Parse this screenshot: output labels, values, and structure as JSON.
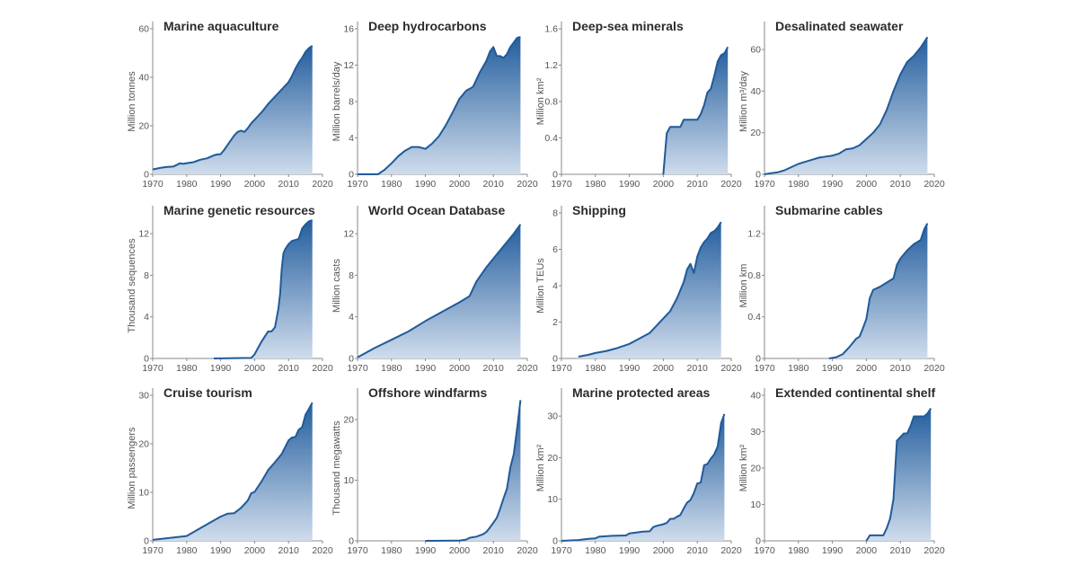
{
  "chart_data": [
    {
      "type": "area",
      "title": "Marine aquaculture",
      "xlabel": "",
      "ylabel": "Million tonnes",
      "xlim": [
        1970,
        2020
      ],
      "ylim": [
        0,
        60
      ],
      "xticks": [
        1970,
        1980,
        1990,
        2000,
        2010,
        2020
      ],
      "yticks": [
        0,
        20,
        40,
        60
      ],
      "x": [
        1970,
        1972,
        1974,
        1976,
        1977,
        1978,
        1979,
        1980,
        1982,
        1984,
        1986,
        1988,
        1989,
        1990,
        1991,
        1992,
        1993,
        1994,
        1995,
        1996,
        1997,
        1998,
        1999,
        2000,
        2002,
        2004,
        2006,
        2008,
        2010,
        2011,
        2012,
        2013,
        2014,
        2015,
        2016,
        2017
      ],
      "values": [
        2,
        2.6,
        3,
        3.2,
        3.8,
        4.5,
        4.3,
        4.6,
        5,
        6,
        6.6,
        7.8,
        8.2,
        8.3,
        10,
        12,
        14,
        16,
        17.5,
        18,
        17.5,
        19,
        21,
        22.5,
        25.5,
        29,
        32,
        35,
        38,
        40.5,
        43.5,
        46,
        48,
        50.5,
        52,
        53
      ]
    },
    {
      "type": "area",
      "title": "Deep hydrocarbons",
      "xlabel": "",
      "ylabel": "Million barrels/day",
      "xlim": [
        1970,
        2020
      ],
      "ylim": [
        0,
        16
      ],
      "xticks": [
        1970,
        1980,
        1990,
        2000,
        2010,
        2020
      ],
      "yticks": [
        0,
        4,
        8,
        12,
        16
      ],
      "x": [
        1970,
        1976,
        1978,
        1980,
        1982,
        1984,
        1986,
        1988,
        1990,
        1992,
        1994,
        1996,
        1998,
        2000,
        2002,
        2004,
        2006,
        2008,
        2009,
        2010,
        2011,
        2012,
        2013,
        2014,
        2015,
        2016,
        2017,
        2018
      ],
      "values": [
        0,
        0,
        0.5,
        1.2,
        2,
        2.6,
        3,
        3,
        2.8,
        3.4,
        4.2,
        5.4,
        6.8,
        8.3,
        9.2,
        9.6,
        11.2,
        12.5,
        13.5,
        14,
        13,
        13,
        12.8,
        13.2,
        14,
        14.5,
        15,
        15.1
      ]
    },
    {
      "type": "area",
      "title": "Deep-sea minerals",
      "xlabel": "",
      "ylabel": "Million km²",
      "xlim": [
        1970,
        2020
      ],
      "ylim": [
        0,
        1.6
      ],
      "xticks": [
        1970,
        1980,
        1990,
        2000,
        2010,
        2020
      ],
      "yticks": [
        0,
        0.4,
        0.8,
        1.2,
        1.6
      ],
      "x": [
        2000,
        2001,
        2002,
        2005,
        2006,
        2010,
        2011,
        2012,
        2013,
        2014,
        2015,
        2016,
        2017,
        2018,
        2019
      ],
      "values": [
        0,
        0.45,
        0.52,
        0.52,
        0.6,
        0.6,
        0.66,
        0.76,
        0.9,
        0.94,
        1.08,
        1.24,
        1.31,
        1.33,
        1.4
      ]
    },
    {
      "type": "area",
      "title": "Desalinated seawater",
      "xlabel": "",
      "ylabel": "Million m³/day",
      "xlim": [
        1970,
        2020
      ],
      "ylim": [
        0,
        70
      ],
      "xticks": [
        1970,
        1980,
        1990,
        2000,
        2010,
        2020
      ],
      "yticks": [
        0,
        20,
        40,
        60
      ],
      "x": [
        1970,
        1972,
        1974,
        1976,
        1978,
        1980,
        1982,
        1984,
        1986,
        1988,
        1990,
        1992,
        1994,
        1996,
        1998,
        2000,
        2002,
        2004,
        2006,
        2008,
        2010,
        2012,
        2014,
        2016,
        2018
      ],
      "values": [
        0,
        0.5,
        1,
        2,
        3.5,
        5,
        6,
        7,
        8,
        8.5,
        9,
        10,
        12,
        12.5,
        14,
        17,
        20,
        24,
        31,
        40,
        48,
        54,
        57,
        61,
        66
      ]
    },
    {
      "type": "area",
      "title": "Marine genetic resources",
      "xlabel": "",
      "ylabel": "Thousand sequences",
      "xlim": [
        1970,
        2020
      ],
      "ylim": [
        0,
        14
      ],
      "xticks": [
        1970,
        1980,
        1990,
        2000,
        2010,
        2020
      ],
      "yticks": [
        0,
        4,
        8,
        12
      ],
      "x": [
        1988,
        1999,
        2000,
        2001,
        2002,
        2003,
        2004,
        2005,
        2006,
        2007,
        2007.5,
        2008,
        2008.5,
        2009,
        2010,
        2011,
        2012,
        2013,
        2014,
        2015,
        2016,
        2017
      ],
      "values": [
        0,
        0.05,
        0.4,
        1,
        1.6,
        2.1,
        2.6,
        2.6,
        3,
        4.8,
        6.2,
        8.6,
        10.1,
        10.5,
        11,
        11.3,
        11.4,
        11.5,
        12.5,
        12.9,
        13.2,
        13.3
      ]
    },
    {
      "type": "area",
      "title": "World Ocean Database",
      "xlabel": "",
      "ylabel": "Million casts",
      "xlim": [
        1970,
        2020
      ],
      "ylim": [
        0,
        14
      ],
      "xticks": [
        1970,
        1980,
        1990,
        2000,
        2010,
        2020
      ],
      "yticks": [
        0,
        4,
        8,
        12
      ],
      "x": [
        1970,
        1975,
        1980,
        1985,
        1990,
        1995,
        2000,
        2003,
        2005,
        2008,
        2010,
        2013,
        2016,
        2018
      ],
      "values": [
        0.1,
        1,
        1.8,
        2.6,
        3.6,
        4.5,
        5.4,
        6,
        7.4,
        8.8,
        9.6,
        10.8,
        12,
        12.9
      ]
    },
    {
      "type": "area",
      "title": "Shipping",
      "xlabel": "",
      "ylabel": "Million TEUs",
      "xlim": [
        1970,
        2020
      ],
      "ylim": [
        0,
        8
      ],
      "xticks": [
        1970,
        1980,
        1990,
        2000,
        2010,
        2020
      ],
      "yticks": [
        0,
        2,
        4,
        6,
        8
      ],
      "x": [
        1975,
        1978,
        1980,
        1983,
        1986,
        1990,
        1993,
        1996,
        1998,
        2000,
        2002,
        2004,
        2006,
        2007,
        2008,
        2009,
        2010,
        2011,
        2012,
        2013,
        2014,
        2015,
        2016,
        2017
      ],
      "values": [
        0.1,
        0.2,
        0.3,
        0.4,
        0.55,
        0.8,
        1.1,
        1.4,
        1.8,
        2.2,
        2.6,
        3.3,
        4.2,
        4.9,
        5.2,
        4.7,
        5.6,
        6.1,
        6.4,
        6.6,
        6.9,
        7,
        7.2,
        7.5
      ]
    },
    {
      "type": "area",
      "title": "Submarine cables",
      "xlabel": "",
      "ylabel": "Million km",
      "xlim": [
        1970,
        2020
      ],
      "ylim": [
        0,
        1.4
      ],
      "xticks": [
        1970,
        1980,
        1990,
        2000,
        2010,
        2020
      ],
      "yticks": [
        0,
        0.4,
        0.8,
        1.2
      ],
      "x": [
        1989,
        1991,
        1993,
        1995,
        1997,
        1998,
        1999,
        2000,
        2001,
        2002,
        2004,
        2006,
        2008,
        2009,
        2010,
        2012,
        2014,
        2016,
        2017,
        2018
      ],
      "values": [
        0,
        0.01,
        0.04,
        0.11,
        0.19,
        0.21,
        0.29,
        0.38,
        0.58,
        0.66,
        0.69,
        0.73,
        0.77,
        0.9,
        0.96,
        1.04,
        1.1,
        1.14,
        1.24,
        1.3
      ]
    },
    {
      "type": "area",
      "title": "Cruise tourism",
      "xlabel": "",
      "ylabel": "Million passengers",
      "xlim": [
        1970,
        2020
      ],
      "ylim": [
        0,
        30
      ],
      "xticks": [
        1970,
        1980,
        1990,
        2000,
        2010,
        2020
      ],
      "yticks": [
        0,
        10,
        20,
        30
      ],
      "x": [
        1970,
        1980,
        1985,
        1990,
        1992,
        1994,
        1996,
        1998,
        1999,
        2000,
        2002,
        2004,
        2006,
        2008,
        2010,
        2011,
        2012,
        2013,
        2014,
        2015,
        2016,
        2017
      ],
      "values": [
        0.2,
        1,
        3,
        5,
        5.6,
        5.7,
        6.8,
        8.3,
        9.8,
        10.1,
        12.2,
        14.6,
        16.2,
        17.9,
        20.7,
        21.3,
        21.4,
        22.9,
        23.4,
        26,
        27.2,
        28.5
      ]
    },
    {
      "type": "area",
      "title": "Offshore windfarms",
      "xlabel": "",
      "ylabel": "Thousand megawatts",
      "xlim": [
        1970,
        2020
      ],
      "ylim": [
        0,
        24
      ],
      "xticks": [
        1970,
        1980,
        1990,
        2000,
        2010,
        2020
      ],
      "yticks": [
        0,
        10,
        20
      ],
      "x": [
        1990,
        2000,
        2002,
        2003,
        2005,
        2007,
        2008,
        2009,
        2010,
        2011,
        2012,
        2013,
        2014,
        2015,
        2016,
        2017,
        2018
      ],
      "values": [
        0,
        0.05,
        0.2,
        0.5,
        0.7,
        1.1,
        1.5,
        2.2,
        3,
        3.8,
        5.3,
        7,
        8.6,
        12.1,
        14.3,
        18.6,
        23.2
      ]
    },
    {
      "type": "area",
      "title": "Marine protected areas",
      "xlabel": "",
      "ylabel": "Million km²",
      "xlim": [
        1970,
        2020
      ],
      "ylim": [
        0,
        35
      ],
      "xticks": [
        1970,
        1980,
        1990,
        2000,
        2010,
        2020
      ],
      "yticks": [
        0,
        10,
        20,
        30
      ],
      "x": [
        1970,
        1975,
        1978,
        1980,
        1981,
        1985,
        1989,
        1990,
        1992,
        1994,
        1996,
        1997,
        1998,
        2000,
        2001,
        2002,
        2003,
        2004,
        2005,
        2006,
        2007,
        2008,
        2009,
        2010,
        2011,
        2012,
        2013,
        2014,
        2015,
        2016,
        2017,
        2018
      ],
      "values": [
        0,
        0.2,
        0.5,
        0.6,
        1,
        1.2,
        1.3,
        1.8,
        2,
        2.2,
        2.3,
        3.3,
        3.6,
        4,
        4.3,
        5.3,
        5.3,
        5.8,
        6.2,
        7.8,
        9.2,
        9.8,
        11.5,
        13.8,
        14,
        18.2,
        18.5,
        19.8,
        20.8,
        22.7,
        28.3,
        30.5
      ]
    },
    {
      "type": "area",
      "title": "Extended continental shelf",
      "xlabel": "",
      "ylabel": "Million km²",
      "xlim": [
        1970,
        2020
      ],
      "ylim": [
        0,
        40
      ],
      "xticks": [
        1970,
        1980,
        1990,
        2000,
        2010,
        2020
      ],
      "yticks": [
        0,
        10,
        20,
        30,
        40
      ],
      "x": [
        2000,
        2001,
        2005,
        2006,
        2007,
        2008,
        2009,
        2010,
        2011,
        2012,
        2013,
        2014,
        2016,
        2017,
        2018,
        2019
      ],
      "values": [
        0,
        1.5,
        1.5,
        3.5,
        6.2,
        11.5,
        27.5,
        28.5,
        29.5,
        29.5,
        31.5,
        34.2,
        34.2,
        34.2,
        35,
        36.4
      ]
    }
  ],
  "colors": {
    "line": "#1f5a9a",
    "fill_top": "#245e9e",
    "fill_bottom": "#cfdcec",
    "axis": "#8a8a8a"
  }
}
